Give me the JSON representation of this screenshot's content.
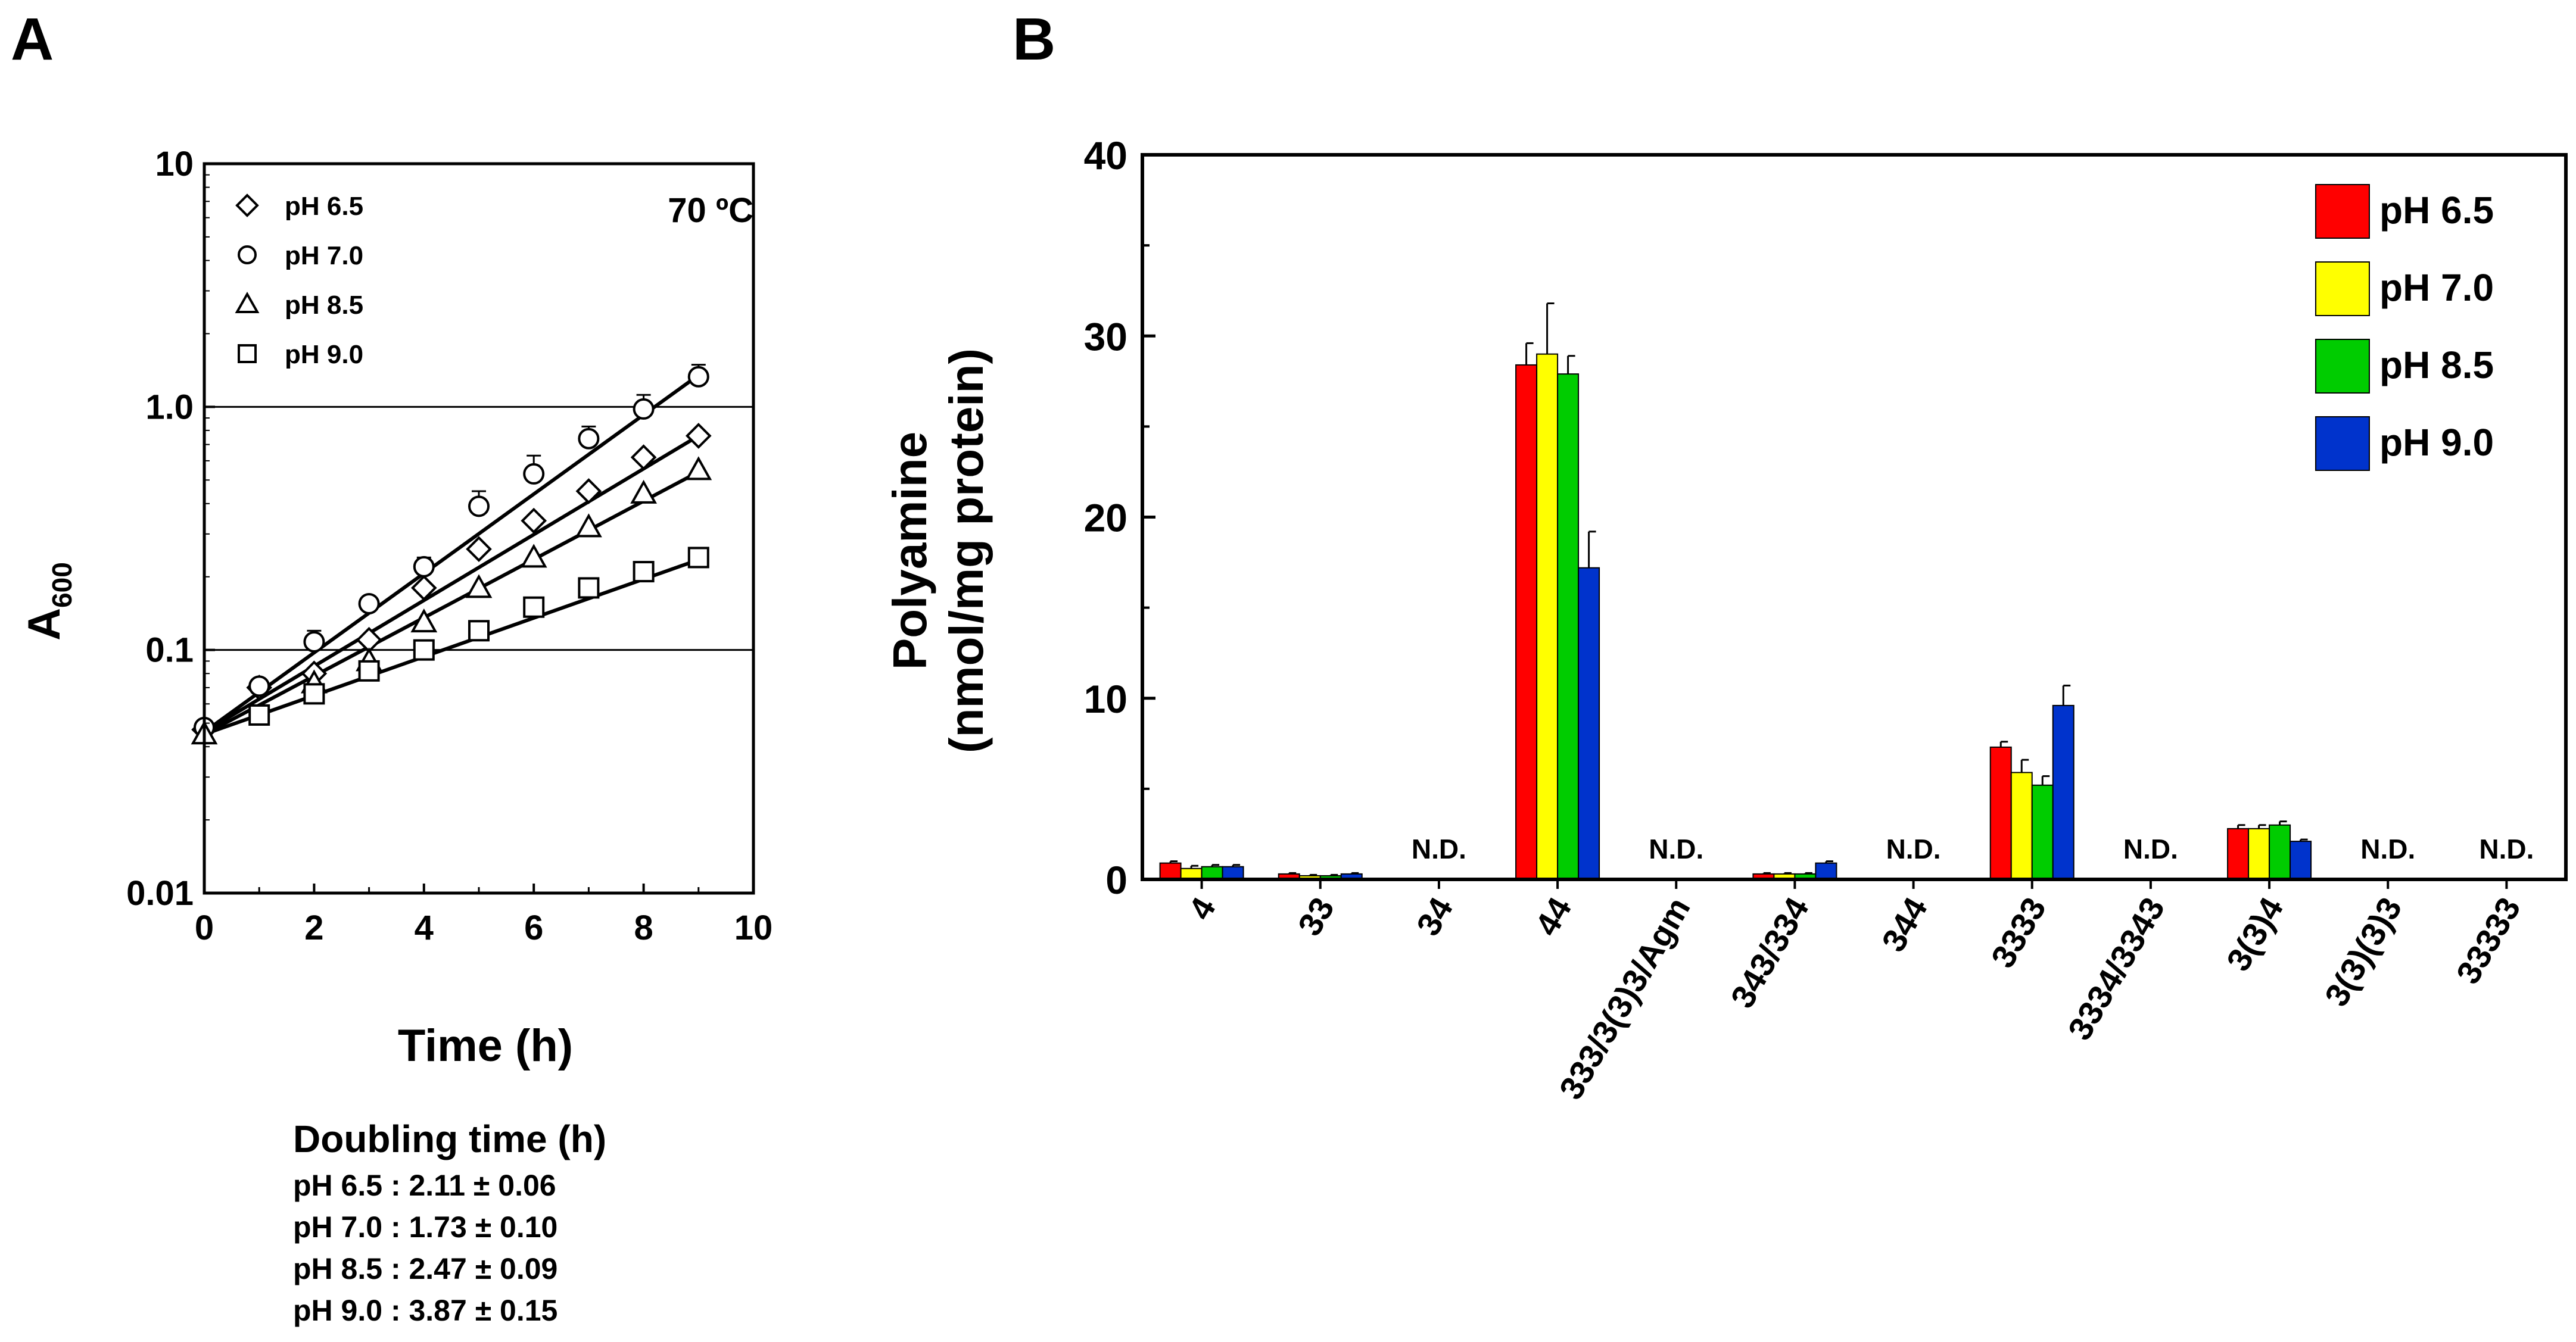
{
  "colors": {
    "axis": "#000000",
    "ph65": "#ff0000",
    "ph70": "#ffff00",
    "ph85": "#00cc00",
    "ph90": "#0033cc"
  },
  "chart_data": [
    {
      "panel_label": "A",
      "type": "scatter",
      "title": "",
      "annotation": "70 ºC",
      "xlabel": "Time (h)",
      "ylabel_main": "A",
      "ylabel_sub": "600",
      "x_ticks": [
        "0",
        "2",
        "4",
        "6",
        "8",
        "10"
      ],
      "y_ticks": [
        "0.01",
        "0.1",
        "1.0",
        "10"
      ],
      "xlim": [
        0,
        10
      ],
      "ylim": [
        0.01,
        10
      ],
      "yscale": "log",
      "gridlines_y": [
        0.1,
        1.0
      ],
      "legend_position": "top-left",
      "series": [
        {
          "name": "pH 6.5",
          "marker": "diamond",
          "x": [
            0,
            1,
            2,
            3,
            4,
            5,
            6,
            7,
            8,
            9
          ],
          "y": [
            0.047,
            0.07,
            0.08,
            0.11,
            0.18,
            0.26,
            0.34,
            0.45,
            0.62,
            0.76
          ],
          "fit": [
            0.046,
            0.76
          ]
        },
        {
          "name": "pH 7.0",
          "marker": "circle",
          "x": [
            0,
            1,
            2,
            3,
            4,
            5,
            6,
            7,
            8,
            9
          ],
          "y": [
            0.048,
            0.071,
            0.108,
            0.155,
            0.22,
            0.39,
            0.53,
            0.74,
            0.98,
            1.33
          ],
          "err": [
            0,
            0,
            0.012,
            0,
            0.02,
            0.06,
            0.1,
            0.09,
            0.14,
            0.16
          ],
          "fit": [
            0.046,
            1.35
          ]
        },
        {
          "name": "pH 8.5",
          "marker": "triangle",
          "x": [
            0,
            2,
            3,
            4,
            5,
            6,
            7,
            8,
            9
          ],
          "y": [
            0.045,
            0.073,
            0.09,
            0.13,
            0.18,
            0.24,
            0.32,
            0.44,
            0.55
          ],
          "fit": [
            0.045,
            0.54
          ]
        },
        {
          "name": "pH 9.0",
          "marker": "square",
          "x": [
            1,
            2,
            3,
            4,
            5,
            6,
            7,
            8,
            9
          ],
          "y": [
            0.054,
            0.066,
            0.082,
            0.1,
            0.12,
            0.15,
            0.18,
            0.21,
            0.24
          ],
          "fit": [
            0.045,
            0.235
          ]
        }
      ],
      "doubling": {
        "title": "Doubling time (h)",
        "rows": [
          "pH 6.5 : 2.11 ± 0.06",
          "pH 7.0 : 1.73 ± 0.10",
          "pH 8.5 : 2.47 ± 0.09",
          "pH 9.0 : 3.87 ± 0.15"
        ]
      }
    },
    {
      "panel_label": "B",
      "type": "bar",
      "title": "",
      "ylabel_line1": "Polyamine",
      "ylabel_line2": "(nmol/mg protein)",
      "ylim": [
        0,
        40
      ],
      "y_ticks": [
        "0",
        "10",
        "20",
        "30",
        "40"
      ],
      "legend_position": "top-right",
      "nd_label": "N.D.",
      "categories": [
        "4",
        "33",
        "34",
        "44",
        "333/3(3)3/Agm",
        "343/334",
        "344",
        "3333",
        "3334/3343",
        "3(3)4",
        "3(3)(3)3",
        "33333"
      ],
      "not_detected": [
        "34",
        "333/3(3)3/Agm",
        "344",
        "3334/3343",
        "3(3)(3)3",
        "33333"
      ],
      "series": [
        {
          "name": "pH 6.5",
          "values": [
            0.9,
            0.3,
            0,
            28.4,
            0,
            0.3,
            0,
            7.3,
            0,
            2.8,
            0,
            0
          ],
          "err": [
            0.1,
            0.05,
            0,
            1.2,
            0,
            0.05,
            0,
            0.3,
            0,
            0.2,
            0,
            0
          ]
        },
        {
          "name": "pH 7.0",
          "values": [
            0.6,
            0.2,
            0,
            29.0,
            0,
            0.3,
            0,
            5.9,
            0,
            2.8,
            0,
            0
          ],
          "err": [
            0.15,
            0.05,
            0,
            2.8,
            0,
            0.05,
            0,
            0.7,
            0,
            0.2,
            0,
            0
          ]
        },
        {
          "name": "pH 8.5",
          "values": [
            0.7,
            0.2,
            0,
            27.9,
            0,
            0.3,
            0,
            5.2,
            0,
            3.0,
            0,
            0
          ],
          "err": [
            0.1,
            0.05,
            0,
            1.0,
            0,
            0.05,
            0,
            0.5,
            0,
            0.2,
            0,
            0
          ]
        },
        {
          "name": "pH 9.0",
          "values": [
            0.7,
            0.3,
            0,
            17.2,
            0,
            0.9,
            0,
            9.6,
            0,
            2.1,
            0,
            0
          ],
          "err": [
            0.1,
            0.05,
            0,
            2.0,
            0,
            0.1,
            0,
            1.1,
            0,
            0.1,
            0,
            0
          ]
        }
      ]
    }
  ]
}
